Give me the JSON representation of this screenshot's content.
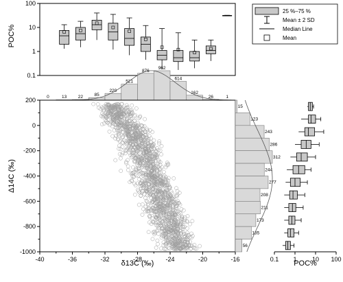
{
  "chart_data": [
    {
      "type": "box",
      "panel": "top",
      "ylabel": "POC%",
      "yscale": "log",
      "ylim": [
        0.1,
        100
      ],
      "yticks": [
        "0.1",
        "1",
        "10",
        "100"
      ],
      "x_binned_by": "δ13C",
      "boxes": [
        {
          "center": -37,
          "q1": 2.0,
          "median": 4.5,
          "q3": 7.5,
          "lo": 1.3,
          "hi": 13,
          "mean": 6.5
        },
        {
          "center": -35,
          "q1": 3.0,
          "median": 5.5,
          "q3": 10,
          "lo": 1.5,
          "hi": 18,
          "mean": 7.5
        },
        {
          "center": -33,
          "q1": 8.0,
          "median": 13,
          "q3": 20,
          "lo": 3.0,
          "hi": 40,
          "mean": 15
        },
        {
          "center": -31,
          "q1": 3.0,
          "median": 6.5,
          "q3": 15,
          "lo": 1.2,
          "hi": 35,
          "mean": 10
        },
        {
          "center": -29,
          "q1": 1.8,
          "median": 3.5,
          "q3": 9,
          "lo": 0.7,
          "hi": 25,
          "mean": 7
        },
        {
          "center": -27,
          "q1": 1.0,
          "median": 2.0,
          "q3": 4,
          "lo": 0.45,
          "hi": 12,
          "mean": 3.2
        },
        {
          "center": -25,
          "q1": 0.45,
          "median": 0.7,
          "q3": 1.1,
          "lo": 0.18,
          "hi": 9,
          "mean": 1.5
        },
        {
          "center": -23,
          "q1": 0.38,
          "median": 0.55,
          "q3": 1.1,
          "lo": 0.17,
          "hi": 6,
          "mean": 1.2
        },
        {
          "center": -21,
          "q1": 0.4,
          "median": 0.55,
          "q3": 1.0,
          "lo": 0.2,
          "hi": 3,
          "mean": 0.9
        },
        {
          "center": -19,
          "q1": 0.8,
          "median": 1.1,
          "q3": 1.7,
          "lo": 0.4,
          "hi": 3,
          "mean": 1.3
        },
        {
          "center": -17,
          "q1": 30,
          "median": 31,
          "q3": 32,
          "lo": 30,
          "hi": 32,
          "mean": 31
        }
      ]
    },
    {
      "type": "histogram",
      "panel": "top-histogram",
      "bins_x": [
        -40,
        -38,
        -36,
        -34,
        -32,
        -30,
        -28,
        -26,
        -24,
        -22,
        -20,
        -18,
        -16
      ],
      "counts": [
        0,
        13,
        22,
        85,
        220,
        521,
        876,
        962,
        614,
        162,
        26,
        1
      ]
    },
    {
      "type": "scatter",
      "panel": "main",
      "xlabel": "δ13C (‰)",
      "ylabel": "Δ14C (‰)",
      "xlim": [
        -40,
        -16
      ],
      "ylim": [
        -1000,
        200
      ],
      "xticks": [
        "-40",
        "-36",
        "-32",
        "-28",
        "-24",
        "-20",
        "-16"
      ],
      "yticks": [
        "200",
        "0",
        "-200",
        "-400",
        "-600",
        "-800",
        "-1000"
      ],
      "approx_points": 3500,
      "marker": "open-circle"
    },
    {
      "type": "histogram",
      "panel": "right-histogram",
      "orientation": "horizontal",
      "bins_y": [
        200,
        100,
        0,
        -100,
        -200,
        -300,
        -400,
        -500,
        -600,
        -700,
        -800,
        -900,
        -1000
      ],
      "counts": [
        15,
        123,
        243,
        286,
        312,
        244,
        277,
        208,
        211,
        173,
        135,
        56
      ]
    },
    {
      "type": "box",
      "panel": "right",
      "orientation": "horizontal",
      "xlabel": "POC%",
      "xscale": "log",
      "xlim": [
        0.1,
        100
      ],
      "xticks": [
        "0.1",
        "1",
        "10",
        "100"
      ],
      "boxes": [
        {
          "center": 150,
          "q1": 4.5,
          "median": 5.5,
          "q3": 7,
          "lo": 4,
          "hi": 8,
          "mean": 5.5
        },
        {
          "center": 50,
          "q1": 4.5,
          "median": 6,
          "q3": 10,
          "lo": 2,
          "hi": 18,
          "mean": 7
        },
        {
          "center": -50,
          "q1": 3,
          "median": 4.5,
          "q3": 9,
          "lo": 1.5,
          "hi": 25,
          "mean": 6
        },
        {
          "center": -150,
          "q1": 2,
          "median": 3.5,
          "q3": 6,
          "lo": 1,
          "hi": 15,
          "mean": 4.5
        },
        {
          "center": -250,
          "q1": 1.2,
          "median": 2,
          "q3": 4,
          "lo": 0.6,
          "hi": 10,
          "mean": 3
        },
        {
          "center": -350,
          "q1": 0.8,
          "median": 1.5,
          "q3": 3,
          "lo": 0.4,
          "hi": 6,
          "mean": 2
        },
        {
          "center": -450,
          "q1": 0.6,
          "median": 1.0,
          "q3": 1.8,
          "lo": 0.35,
          "hi": 4,
          "mean": 1.3
        },
        {
          "center": -550,
          "q1": 0.55,
          "median": 0.8,
          "q3": 1.3,
          "lo": 0.3,
          "hi": 3,
          "mean": 1.0
        },
        {
          "center": -650,
          "q1": 0.5,
          "median": 0.75,
          "q3": 1.1,
          "lo": 0.3,
          "hi": 2.5,
          "mean": 0.9
        },
        {
          "center": -750,
          "q1": 0.5,
          "median": 0.7,
          "q3": 1.0,
          "lo": 0.3,
          "hi": 2,
          "mean": 0.8
        },
        {
          "center": -850,
          "q1": 0.45,
          "median": 0.6,
          "q3": 0.9,
          "lo": 0.3,
          "hi": 1.5,
          "mean": 0.7
        },
        {
          "center": -950,
          "q1": 0.35,
          "median": 0.45,
          "q3": 0.6,
          "lo": 0.25,
          "hi": 0.9,
          "mean": 0.5
        }
      ]
    }
  ],
  "legend": {
    "placement": "top-right",
    "items": [
      {
        "symbol": "box",
        "label": "25 %–75 %"
      },
      {
        "symbol": "whisker",
        "label": "Mean ± 2 SD"
      },
      {
        "symbol": "line",
        "label": "Median Line"
      },
      {
        "symbol": "square",
        "label": "Mean"
      }
    ]
  },
  "colors": {
    "box_fill": "#c8c8c8",
    "hist_fill": "#d9d9d9",
    "scatter_stroke": "#a0a0a0"
  }
}
